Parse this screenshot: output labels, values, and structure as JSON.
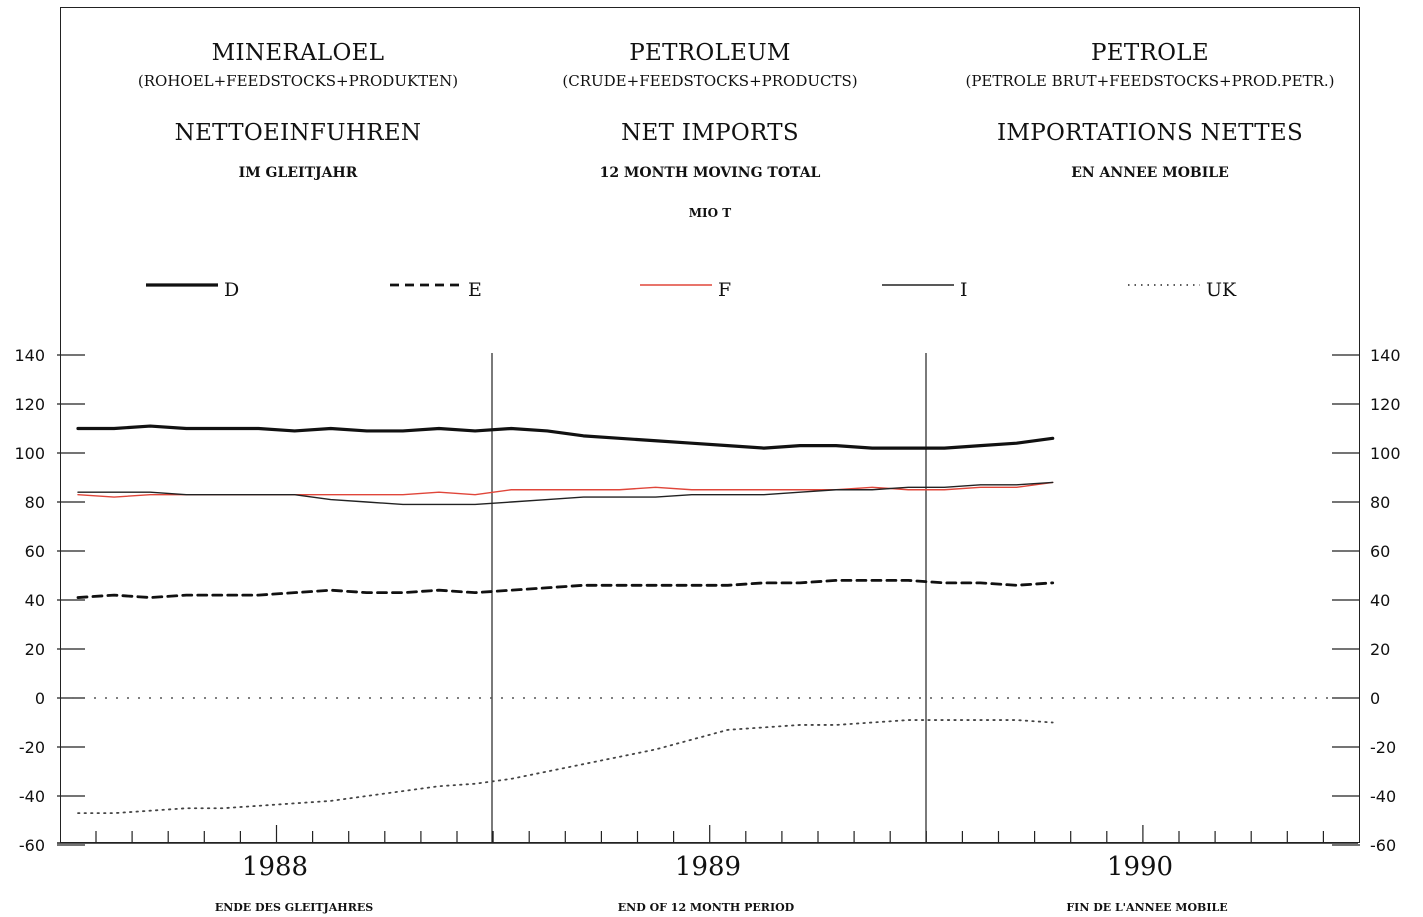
{
  "header": {
    "left": {
      "title": "MINERALOEL",
      "sub": "(ROHOEL+FEEDSTOCKS+PRODUKTEN)",
      "heading": "NETTOEINFUHREN",
      "note": "IM GLEITJAHR"
    },
    "center": {
      "title": "PETROLEUM",
      "sub": "(CRUDE+FEEDSTOCKS+PRODUCTS)",
      "heading": "NET IMPORTS",
      "note": "12 MONTH MOVING TOTAL",
      "unit": "MIO T"
    },
    "right": {
      "title": "PETROLE",
      "sub": "(PETROLE BRUT+FEEDSTOCKS+PROD.PETR.)",
      "heading": "IMPORTATIONS NETTES",
      "note": "EN ANNEE MOBILE"
    }
  },
  "footer": {
    "left": "ENDE DES GLEITJAHRES",
    "center": "END OF 12 MONTH PERIOD",
    "right": "FIN DE L'ANNEE MOBILE"
  },
  "colors": {
    "D": "#111111",
    "E": "#111111",
    "F": "#e0463a",
    "I": "#222222",
    "UK": "#444444"
  },
  "chart_data": {
    "type": "line",
    "ylim": [
      -60,
      140
    ],
    "yticks": [
      140,
      120,
      100,
      80,
      60,
      40,
      20,
      0,
      -20,
      -40,
      -60
    ],
    "years": [
      "1988",
      "1989",
      "1990"
    ],
    "x": [
      "1988-01",
      "1988-02",
      "1988-03",
      "1988-04",
      "1988-05",
      "1988-06",
      "1988-07",
      "1988-08",
      "1988-09",
      "1988-10",
      "1988-11",
      "1988-12",
      "1989-01",
      "1989-02",
      "1989-03",
      "1989-04",
      "1989-05",
      "1989-06",
      "1989-07",
      "1989-08",
      "1989-09",
      "1989-10",
      "1989-11",
      "1989-12",
      "1990-01",
      "1990-02",
      "1990-03",
      "1990-04"
    ],
    "legend_position": "top",
    "grid": false,
    "series": [
      {
        "name": "D",
        "style": "thick",
        "values": [
          110,
          110,
          111,
          110,
          110,
          110,
          109,
          110,
          109,
          109,
          110,
          109,
          110,
          109,
          107,
          106,
          105,
          104,
          103,
          102,
          103,
          103,
          102,
          102,
          102,
          103,
          104,
          106
        ]
      },
      {
        "name": "E",
        "style": "dashed",
        "values": [
          41,
          42,
          41,
          42,
          42,
          42,
          43,
          44,
          43,
          43,
          44,
          43,
          44,
          45,
          46,
          46,
          46,
          46,
          46,
          47,
          47,
          48,
          48,
          48,
          47,
          47,
          46,
          47
        ]
      },
      {
        "name": "F",
        "style": "red",
        "values": [
          83,
          82,
          83,
          83,
          83,
          83,
          83,
          83,
          83,
          83,
          84,
          83,
          85,
          85,
          85,
          85,
          86,
          85,
          85,
          85,
          85,
          85,
          86,
          85,
          85,
          86,
          86,
          88
        ]
      },
      {
        "name": "I",
        "style": "thin",
        "values": [
          84,
          84,
          84,
          83,
          83,
          83,
          83,
          81,
          80,
          79,
          79,
          79,
          80,
          81,
          82,
          82,
          82,
          83,
          83,
          83,
          84,
          85,
          85,
          86,
          86,
          87,
          87,
          88
        ]
      },
      {
        "name": "UK",
        "style": "dotted",
        "values": [
          -47,
          -47,
          -46,
          -45,
          -45,
          -44,
          -43,
          -42,
          -40,
          -38,
          -36,
          -35,
          -33,
          -30,
          -27,
          -24,
          -21,
          -17,
          -13,
          -12,
          -11,
          -11,
          -10,
          -9,
          -9,
          -9,
          -9,
          -10
        ]
      }
    ]
  }
}
